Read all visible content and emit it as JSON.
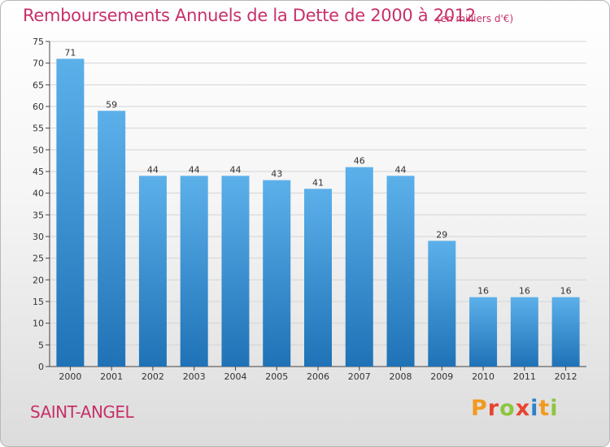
{
  "header": {
    "title": "Remboursements Annuels de la Dette de 2000 à 2012",
    "unit": "(en milliers d'€)"
  },
  "footer": {
    "commune": "SAINT-ANGEL",
    "brand": "Proxiti"
  },
  "colors": {
    "title": "#c8306a",
    "bar_top": "#5cb0ea",
    "bar_bottom": "#1f72b6",
    "grid": "#d4d4d4"
  },
  "chart_data": {
    "type": "bar",
    "title": "Remboursements Annuels de la Dette de 2000 à 2012",
    "xlabel": "",
    "ylabel": "(en milliers d'€)",
    "ylim": [
      0,
      75
    ],
    "ytick_step": 5,
    "grid": true,
    "categories": [
      "2000",
      "2001",
      "2002",
      "2003",
      "2004",
      "2005",
      "2006",
      "2007",
      "2008",
      "2009",
      "2010",
      "2011",
      "2012"
    ],
    "values": [
      71,
      59,
      44,
      44,
      44,
      43,
      41,
      46,
      44,
      29,
      16,
      16,
      16
    ]
  }
}
